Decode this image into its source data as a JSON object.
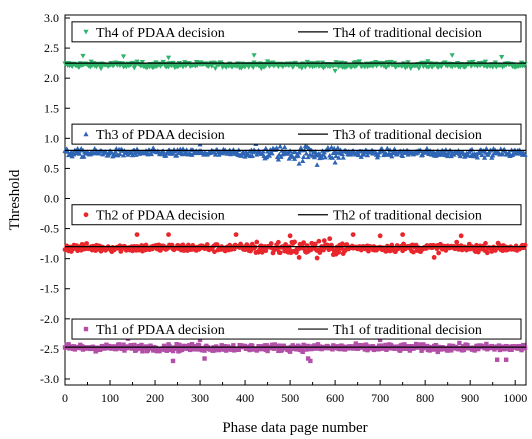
{
  "chart_data": {
    "type": "scatter",
    "xlabel": "Phase data page number",
    "ylabel": "Threshold",
    "xlim": [
      0,
      1024
    ],
    "ylim": [
      -3.1,
      3.05
    ],
    "xticks": [
      0,
      100,
      200,
      300,
      400,
      500,
      600,
      700,
      800,
      900,
      1000
    ],
    "yticks": [
      3.0,
      2.5,
      2.0,
      1.5,
      1.0,
      0.5,
      0.0,
      -0.5,
      -1.0,
      -1.5,
      -2.0,
      -2.5,
      -3.0
    ],
    "ytick_labels": [
      "3.0",
      "2.5",
      "2.0",
      "1.5",
      "1.0",
      "0.5",
      "0.0",
      "-0.5",
      "-1.0",
      "-1.5",
      "-2.0",
      "-2.5",
      "-3.0"
    ],
    "x_range": [
      0,
      1024
    ],
    "n_points": 1024,
    "series": [
      {
        "name": "Th4 of PDAA decision",
        "line_name": "Th4 of traditional decision",
        "marker": "triangle-down",
        "color": "#2fb36b",
        "traditional_value": 2.25,
        "mean": 2.22,
        "spread": 0.05,
        "outliers": [
          [
            40,
            2.37
          ],
          [
            130,
            2.36
          ],
          [
            230,
            2.34
          ],
          [
            420,
            2.38
          ],
          [
            860,
            2.38
          ],
          [
            970,
            2.35
          ],
          [
            600,
            2.12
          ]
        ]
      },
      {
        "name": "Th3 of PDAA decision",
        "line_name": "Th3 of traditional decision",
        "marker": "triangle-up",
        "color": "#2e64b4",
        "traditional_value": 0.8,
        "mean": 0.76,
        "spread": 0.07,
        "outliers": [
          [
            480,
            1.02
          ],
          [
            500,
            1.0
          ],
          [
            450,
            0.97
          ],
          [
            700,
            0.98
          ],
          [
            760,
            0.95
          ],
          [
            900,
            0.95
          ],
          [
            520,
            0.58
          ],
          [
            560,
            0.56
          ],
          [
            600,
            0.6
          ],
          [
            300,
            0.9
          ],
          [
            640,
            0.93
          ]
        ]
      },
      {
        "name": "Th2 of PDAA decision",
        "line_name": "Th2 of traditional decision",
        "marker": "circle",
        "color": "#e8262b",
        "traditional_value": -0.8,
        "mean": -0.82,
        "spread": 0.07,
        "outliers": [
          [
            160,
            -0.6
          ],
          [
            230,
            -0.6
          ],
          [
            380,
            -0.6
          ],
          [
            500,
            -0.62
          ],
          [
            640,
            -0.6
          ],
          [
            700,
            -0.62
          ],
          [
            750,
            -0.6
          ],
          [
            880,
            -0.62
          ],
          [
            820,
            -0.98
          ],
          [
            560,
            -0.99
          ],
          [
            520,
            -0.98
          ]
        ]
      },
      {
        "name": "Th1 of PDAA decision",
        "line_name": "Th1 of traditional decision",
        "marker": "square",
        "color": "#b34fa8",
        "traditional_value": -2.47,
        "mean": -2.48,
        "spread": 0.06,
        "outliers": [
          [
            380,
            -2.21
          ],
          [
            730,
            -2.2
          ],
          [
            860,
            -2.2
          ],
          [
            140,
            -2.33
          ],
          [
            300,
            -2.35
          ],
          [
            700,
            -2.35
          ],
          [
            240,
            -2.7
          ],
          [
            545,
            -2.7
          ],
          [
            960,
            -2.68
          ],
          [
            980,
            -2.68
          ],
          [
            310,
            -2.66
          ],
          [
            540,
            -2.66
          ]
        ]
      }
    ],
    "legend": "inside each band, top",
    "grid": false
  }
}
